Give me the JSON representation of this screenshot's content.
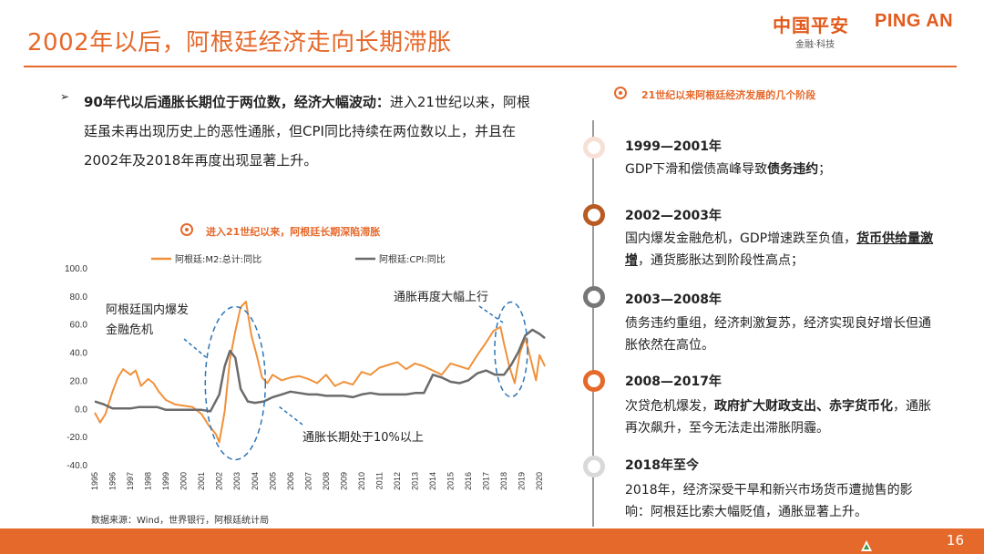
{
  "header": {
    "title": "2002年以后，阿根廷经济走向长期滞胀",
    "logo_cn": "中国平安",
    "logo_en": "PING AN",
    "logo_tagline": "金融·科技"
  },
  "intro": {
    "bullet": "➢",
    "lead_bold": "90年代以后通胀长期位于两位数，经济大幅波动：",
    "text": "进入21世纪以来，阿根廷虽未再出现历史上的恶性通胀，但CPI同比持续在两位数以上，并且在2002年及2018年再度出现显著上升。"
  },
  "chart": {
    "heading": "进入21世纪以来，阿根廷长期深陷滞胀",
    "annotations": {
      "crisis": "阿根廷国内爆发金融危机",
      "crisis_line1": "阿根廷国内爆发",
      "crisis_line2": "金融危机",
      "surge": "通胀再度大幅上行",
      "long_high": "通胀长期处于10%以上"
    },
    "source": "数据来源：Wind，世界银行，阿根廷统计局"
  },
  "chart_data": {
    "type": "line",
    "title": "",
    "xlabel": "",
    "ylabel": "",
    "ylim": [
      -40,
      100
    ],
    "yticks": [
      "100.0",
      "80.0",
      "60.0",
      "40.0",
      "20.0",
      "0.0",
      "-20.0",
      "-40.0"
    ],
    "xticks": [
      "1995",
      "1996",
      "1997",
      "1998",
      "1999",
      "2000",
      "2001",
      "2002",
      "2003",
      "2004",
      "2005",
      "2006",
      "2007",
      "2008",
      "2009",
      "2010",
      "2011",
      "2012",
      "2013",
      "2014",
      "2015",
      "2016",
      "2017",
      "2018",
      "2019",
      "2020"
    ],
    "xlim": [
      1995,
      2020.5
    ],
    "legend_position": "top",
    "grid": false,
    "series": [
      {
        "name": "阿根廷:M2:总计:同比",
        "color": "#f0913a",
        "x": [
          1995.0,
          1995.3,
          1995.6,
          1996.0,
          1996.3,
          1996.6,
          1997.0,
          1997.3,
          1997.6,
          1998.0,
          1998.3,
          1998.6,
          1999.0,
          1999.5,
          2000.0,
          2000.5,
          2001.0,
          2001.4,
          2001.8,
          2002.0,
          2002.3,
          2002.6,
          2002.9,
          2003.2,
          2003.5,
          2003.8,
          2004.1,
          2004.4,
          2004.7,
          2005.0,
          2005.5,
          2006.0,
          2006.5,
          2007.0,
          2007.5,
          2008.0,
          2008.5,
          2009.0,
          2009.5,
          2010.0,
          2010.5,
          2011.0,
          2011.5,
          2012.0,
          2012.5,
          2013.0,
          2013.5,
          2014.0,
          2014.5,
          2015.0,
          2015.5,
          2016.0,
          2016.5,
          2017.0,
          2017.4,
          2017.8,
          2018.0,
          2018.3,
          2018.6,
          2018.9,
          2019.2,
          2019.5,
          2019.8,
          2020.0,
          2020.3
        ],
        "values": [
          -3,
          -10,
          -4,
          12,
          22,
          28,
          24,
          27,
          16,
          21,
          18,
          12,
          6,
          3,
          2,
          1,
          -4,
          -12,
          -18,
          -24,
          -2,
          35,
          55,
          72,
          76,
          52,
          38,
          22,
          18,
          24,
          20,
          22,
          23,
          21,
          18,
          24,
          16,
          19,
          17,
          26,
          24,
          29,
          31,
          33,
          28,
          32,
          30,
          27,
          24,
          32,
          30,
          28,
          38,
          47,
          55,
          58,
          46,
          30,
          18,
          40,
          50,
          35,
          20,
          38,
          30
        ]
      },
      {
        "name": "阿根廷:CPI:同比",
        "color": "#6b6b6b",
        "x": [
          1995.0,
          1995.5,
          1996.0,
          1996.5,
          1997.0,
          1997.5,
          1998.0,
          1998.5,
          1999.0,
          1999.5,
          2000.0,
          2000.5,
          2001.0,
          2001.5,
          2002.0,
          2002.3,
          2002.6,
          2002.9,
          2003.2,
          2003.6,
          2004.0,
          2004.5,
          2005.0,
          2005.5,
          2006.0,
          2006.5,
          2007.0,
          2007.5,
          2008.0,
          2008.5,
          2009.0,
          2009.5,
          2010.0,
          2010.5,
          2011.0,
          2011.5,
          2012.0,
          2012.5,
          2013.0,
          2013.5,
          2014.0,
          2014.5,
          2015.0,
          2015.5,
          2016.0,
          2016.5,
          2017.0,
          2017.5,
          2018.0,
          2018.4,
          2018.8,
          2019.2,
          2019.6,
          2020.0,
          2020.3
        ],
        "values": [
          5,
          3,
          0,
          0,
          0,
          1,
          1,
          1,
          -1,
          -1,
          -1,
          -1,
          -1,
          -2,
          10,
          30,
          41,
          36,
          14,
          5,
          4,
          5,
          8,
          10,
          12,
          11,
          10,
          10,
          9,
          9,
          9,
          8,
          10,
          11,
          10,
          10,
          10,
          10,
          11,
          11,
          24,
          22,
          19,
          18,
          20,
          25,
          27,
          24,
          24,
          31,
          40,
          52,
          56,
          53,
          50
        ]
      }
    ]
  },
  "timeline": {
    "heading": "21世纪以来阿根廷经济发展的几个阶段",
    "items": [
      {
        "year": "1999—2001年",
        "text": "GDP下滑和偿债高峰导致债务违约；"
      },
      {
        "year": "2002—2003年",
        "text": "国内爆发金融危机，GDP增速跌至负值，货币供给量激增，通货膨胀达到阶段性高点；"
      },
      {
        "year": "2003—2008年",
        "text": "债务违约重组，经济刺激复苏，经济实现良好增长但通胀依然在高位。"
      },
      {
        "year": "2008—2017年",
        "text": "次贷危机爆发，政府扩大财政支出、赤字货币化，通胀再次飙升，至今无法走出滞胀阴霾。"
      },
      {
        "year": "2018年至今",
        "text": "2018年，经济深受干旱和新兴市场货币遭抛售的影响：阿根廷比索大幅贬值，通胀显著上升。"
      }
    ]
  },
  "footer": {
    "page_number": "16"
  },
  "colors": {
    "accent": "#e5692b",
    "m2_line": "#f0913a",
    "cpi_line": "#6b6b6b",
    "circle_dash": "#2e75b6"
  }
}
